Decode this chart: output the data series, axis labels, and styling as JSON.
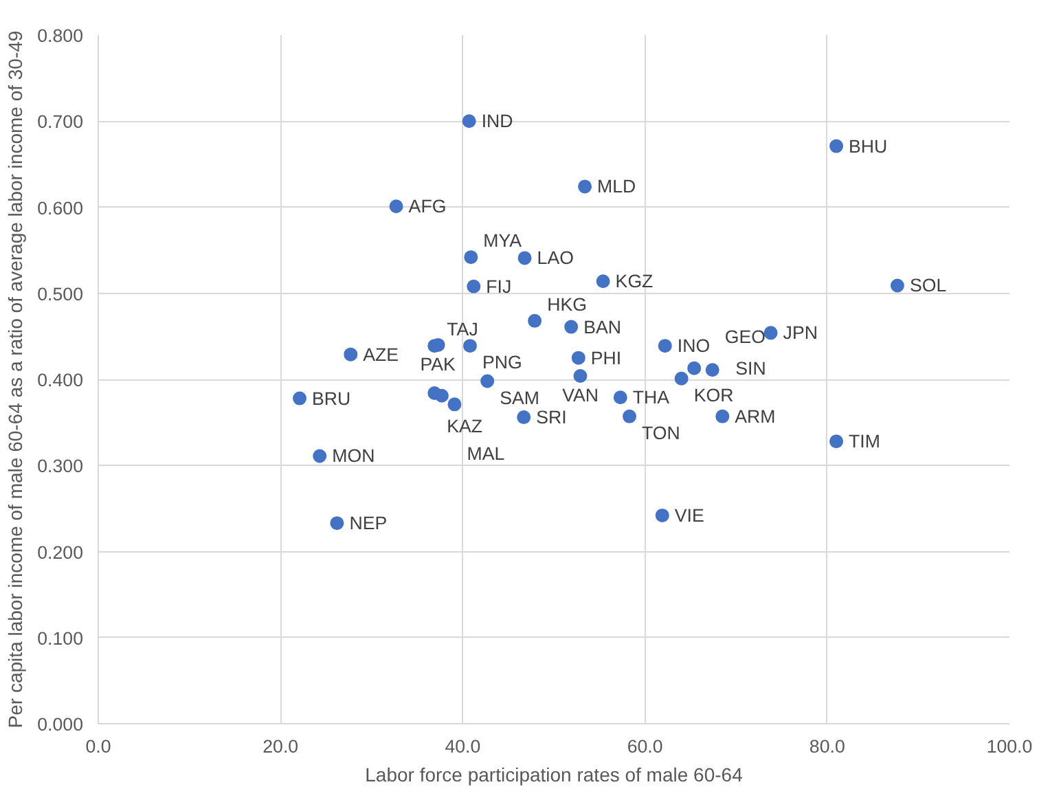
{
  "chart_data": {
    "type": "scatter",
    "xlabel": "Labor force participation rates of male 60-64",
    "ylabel": "Per capita labor income of male 60-64 as a ratio of average labor income of 30-49",
    "x": [
      40.7,
      81.0,
      53.4,
      32.7,
      40.9,
      46.8,
      41.2,
      55.4,
      87.7,
      47.9,
      51.9,
      73.8,
      62.2,
      36.9,
      37.3,
      40.8,
      27.7,
      52.7,
      52.9,
      64.0,
      65.4,
      67.4,
      42.7,
      57.3,
      36.9,
      37.7,
      39.1,
      22.1,
      46.7,
      58.3,
      68.5,
      81.0,
      24.3,
      26.2,
      61.9
    ],
    "series": [
      {
        "color": "#4472c4",
        "values": [
          0.7,
          0.671,
          0.624,
          0.601,
          0.542,
          0.541,
          0.508,
          0.514,
          0.509,
          0.468,
          0.461,
          0.454,
          0.439,
          0.439,
          0.44,
          0.439,
          0.429,
          0.425,
          0.404,
          0.401,
          0.413,
          0.411,
          0.398,
          0.379,
          0.384,
          0.381,
          0.371,
          0.378,
          0.356,
          0.357,
          0.357,
          0.328,
          0.311,
          0.233,
          0.242
        ]
      }
    ],
    "annotations": [
      {
        "text": "IND",
        "x": 40.7,
        "y": 0.7
      },
      {
        "text": "BHU",
        "x": 81.0,
        "y": 0.671
      },
      {
        "text": "MLD",
        "x": 53.4,
        "y": 0.624
      },
      {
        "text": "AFG",
        "x": 32.7,
        "y": 0.601
      },
      {
        "text": "MYA",
        "x": 40.9,
        "y": 0.542
      },
      {
        "text": "LAO",
        "x": 46.8,
        "y": 0.541
      },
      {
        "text": "FIJ",
        "x": 41.2,
        "y": 0.508
      },
      {
        "text": "KGZ",
        "x": 55.4,
        "y": 0.514
      },
      {
        "text": "SOL",
        "x": 87.7,
        "y": 0.509
      },
      {
        "text": "HKG",
        "x": 47.9,
        "y": 0.468
      },
      {
        "text": "BAN",
        "x": 51.9,
        "y": 0.461
      },
      {
        "text": "JPN",
        "x": 73.8,
        "y": 0.454
      },
      {
        "text": "INO",
        "x": 62.2,
        "y": 0.439
      },
      {
        "text": "TAJ",
        "x": 36.9,
        "y": 0.439
      },
      {
        "text": "PAK",
        "x": 37.3,
        "y": 0.44
      },
      {
        "text": "PNG",
        "x": 40.8,
        "y": 0.439
      },
      {
        "text": "AZE",
        "x": 27.7,
        "y": 0.429
      },
      {
        "text": "PHI",
        "x": 52.7,
        "y": 0.425
      },
      {
        "text": "VAN",
        "x": 52.9,
        "y": 0.404
      },
      {
        "text": "KOR",
        "x": 64.0,
        "y": 0.401
      },
      {
        "text": "SIN",
        "x": 65.4,
        "y": 0.413
      },
      {
        "text": "GEO",
        "x": 67.4,
        "y": 0.411
      },
      {
        "text": "SAM",
        "x": 42.7,
        "y": 0.398
      },
      {
        "text": "THA",
        "x": 57.3,
        "y": 0.379
      },
      {
        "text": "KAZ",
        "x": 36.9,
        "y": 0.384
      },
      {
        "text": "MAL",
        "x": 39.1,
        "y": 0.371
      },
      {
        "text": "BRU",
        "x": 22.1,
        "y": 0.378
      },
      {
        "text": "SRI",
        "x": 46.7,
        "y": 0.356
      },
      {
        "text": "TON",
        "x": 58.3,
        "y": 0.357
      },
      {
        "text": "ARM",
        "x": 68.5,
        "y": 0.357
      },
      {
        "text": "TIM",
        "x": 81.0,
        "y": 0.328
      },
      {
        "text": "MON",
        "x": 24.3,
        "y": 0.311
      },
      {
        "text": "NEP",
        "x": 26.2,
        "y": 0.233
      },
      {
        "text": "VIE",
        "x": 61.9,
        "y": 0.242
      }
    ],
    "xlim": [
      0,
      100
    ],
    "ylim": [
      0,
      0.8
    ],
    "xticks": [
      {
        "value": 0,
        "label": "0.0"
      },
      {
        "value": 20,
        "label": "20.0"
      },
      {
        "value": 40,
        "label": "40.0"
      },
      {
        "value": 60,
        "label": "60.0"
      },
      {
        "value": 80,
        "label": "80.0"
      },
      {
        "value": 100,
        "label": "100.0"
      }
    ],
    "yticks": [
      {
        "value": 0,
        "label": "0.000"
      },
      {
        "value": 0.1,
        "label": "0.100"
      },
      {
        "value": 0.2,
        "label": "0.200"
      },
      {
        "value": 0.3,
        "label": "0.300"
      },
      {
        "value": 0.4,
        "label": "0.400"
      },
      {
        "value": 0.5,
        "label": "0.500"
      },
      {
        "value": 0.6,
        "label": "0.600"
      },
      {
        "value": 0.7,
        "label": "0.700"
      },
      {
        "value": 0.8,
        "label": "0.800"
      }
    ],
    "grid": true,
    "marker": "circle"
  }
}
